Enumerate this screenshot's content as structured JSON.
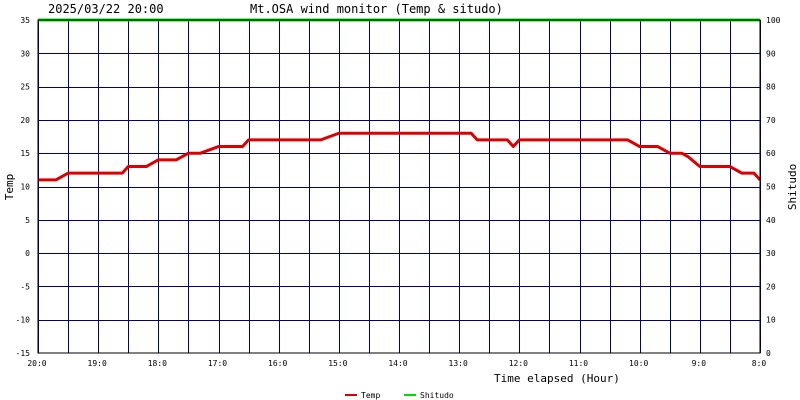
{
  "header": {
    "datetime": "2025/03/22 20:00",
    "title": "Mt.OSA wind monitor (Temp & situdo)"
  },
  "chart_data": {
    "type": "line",
    "title": "Mt.OSA wind monitor (Temp & situdo)",
    "xlabel": "Time elapsed (Hour)",
    "ylabel": "Temp",
    "y2label": "Shitudo",
    "ylim": [
      -15,
      35
    ],
    "y2lim": [
      0,
      100
    ],
    "yticks": [
      "35",
      "30",
      "25",
      "20",
      "15",
      "10",
      "5",
      "0",
      "-5",
      "-10",
      "-15"
    ],
    "y2ticks": [
      "100",
      "90",
      "80",
      "70",
      "60",
      "50",
      "40",
      "30",
      "20",
      "10",
      "0"
    ],
    "xlim": [
      20,
      8
    ],
    "xticks": [
      {
        "value": 20,
        "label": "20:0"
      },
      {
        "value": 19,
        "label": "19:0"
      },
      {
        "value": 18,
        "label": "18:0"
      },
      {
        "value": 17,
        "label": "17:0"
      },
      {
        "value": 16,
        "label": "16:0"
      },
      {
        "value": 15,
        "label": "15:0"
      },
      {
        "value": 14,
        "label": "14:0"
      },
      {
        "value": 13,
        "label": "13:0"
      },
      {
        "value": 12,
        "label": "12:0"
      },
      {
        "value": 11,
        "label": "11:0"
      },
      {
        "value": 10,
        "label": "10:0"
      },
      {
        "value": 9,
        "label": "9:0"
      },
      {
        "value": 8,
        "label": "8:0"
      }
    ],
    "grid": true,
    "legend_position": "bottom",
    "series": [
      {
        "name": "Temp",
        "axis": "left",
        "color": "#dd0000",
        "x": [
          20,
          19.7,
          19.5,
          19,
          18.6,
          18.5,
          18.2,
          18,
          17.7,
          17.5,
          17.3,
          17,
          16.6,
          16.5,
          16,
          15.5,
          15.3,
          15,
          14.5,
          14,
          13.5,
          13,
          12.8,
          12.7,
          12.4,
          12.2,
          12.1,
          12,
          11.7,
          11.5,
          11,
          10.5,
          10.2,
          10,
          9.7,
          9.5,
          9.3,
          9.2,
          9,
          8.8,
          8.5,
          8.3,
          8.1,
          8
        ],
        "y": [
          11,
          11,
          12,
          12,
          12,
          13,
          13,
          14,
          14,
          15,
          15,
          16,
          16,
          17,
          17,
          17,
          17,
          18,
          18,
          18,
          18,
          18,
          18,
          17,
          17,
          17,
          16,
          17,
          17,
          17,
          17,
          17,
          17,
          16,
          16,
          15,
          15,
          14.5,
          13,
          13,
          13,
          12,
          12,
          11
        ]
      },
      {
        "name": "Shitudo",
        "axis": "right",
        "color": "#00dd00",
        "x": [
          20,
          8
        ],
        "y": [
          100,
          100
        ]
      }
    ]
  }
}
